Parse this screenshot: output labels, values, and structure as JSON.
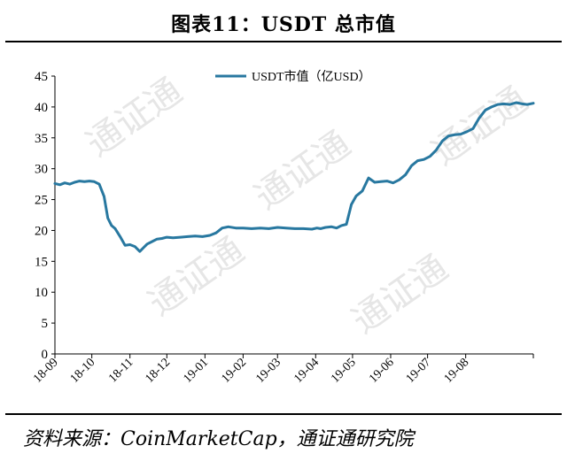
{
  "figure_title": "图表11：USDT 总市值",
  "source_text": "资料来源：CoinMarketCap，通证通研究院",
  "colors": {
    "line": "#2878a0",
    "axis": "#000000",
    "watermark": "#e6e6e6"
  },
  "watermark_text": "通证通",
  "chart_data": {
    "type": "line",
    "title": "",
    "xlabel": "",
    "ylabel": "",
    "ylim": [
      0,
      45
    ],
    "yticks": [
      0,
      5,
      10,
      15,
      20,
      25,
      30,
      35,
      40,
      45
    ],
    "xlim": [
      "2018-09-01",
      "2019-09-25"
    ],
    "xticks": [
      {
        "label": "18-09",
        "date": "2018-09-01"
      },
      {
        "label": "18-10",
        "date": "2018-10-01"
      },
      {
        "label": "18-11",
        "date": "2018-11-01"
      },
      {
        "label": "18-12",
        "date": "2018-12-01"
      },
      {
        "label": "19-01",
        "date": "2019-01-01"
      },
      {
        "label": "19-02",
        "date": "2019-02-01"
      },
      {
        "label": "19-03",
        "date": "2019-03-01"
      },
      {
        "label": "19-04",
        "date": "2019-04-01"
      },
      {
        "label": "19-05",
        "date": "2019-05-01"
      },
      {
        "label": "19-06",
        "date": "2019-06-01"
      },
      {
        "label": "19-07",
        "date": "2019-07-01"
      },
      {
        "label": "19-08",
        "date": "2019-08-01"
      }
    ],
    "grid": false,
    "legend_position": "top-center",
    "series": [
      {
        "name": "USDT市值（亿USD）",
        "x": [
          "2018-09-01",
          "2018-09-05",
          "2018-09-09",
          "2018-09-13",
          "2018-09-17",
          "2018-09-21",
          "2018-09-25",
          "2018-09-29",
          "2018-10-03",
          "2018-10-07",
          "2018-10-11",
          "2018-10-14",
          "2018-10-17",
          "2018-10-20",
          "2018-10-24",
          "2018-10-28",
          "2018-11-01",
          "2018-11-05",
          "2018-11-09",
          "2018-11-12",
          "2018-11-15",
          "2018-11-19",
          "2018-11-23",
          "2018-11-27",
          "2018-12-01",
          "2018-12-06",
          "2018-12-12",
          "2018-12-18",
          "2018-12-24",
          "2018-12-30",
          "2019-01-05",
          "2019-01-10",
          "2019-01-15",
          "2019-01-20",
          "2019-01-26",
          "2019-02-01",
          "2019-02-08",
          "2019-02-15",
          "2019-02-22",
          "2019-03-01",
          "2019-03-08",
          "2019-03-15",
          "2019-03-22",
          "2019-03-29",
          "2019-04-02",
          "2019-04-05",
          "2019-04-09",
          "2019-04-14",
          "2019-04-18",
          "2019-04-22",
          "2019-04-26",
          "2019-04-30",
          "2019-05-04",
          "2019-05-09",
          "2019-05-14",
          "2019-05-19",
          "2019-05-24",
          "2019-05-29",
          "2019-06-03",
          "2019-06-08",
          "2019-06-13",
          "2019-06-18",
          "2019-06-23",
          "2019-06-28",
          "2019-07-03",
          "2019-07-08",
          "2019-07-13",
          "2019-07-18",
          "2019-07-23",
          "2019-07-28",
          "2019-08-02",
          "2019-08-07",
          "2019-08-12",
          "2019-08-17",
          "2019-08-22",
          "2019-08-27",
          "2019-09-01",
          "2019-09-06",
          "2019-09-11",
          "2019-09-16",
          "2019-09-20",
          "2019-09-25"
        ],
        "values": [
          27.6,
          27.4,
          27.7,
          27.5,
          27.8,
          28.0,
          27.9,
          28.0,
          27.9,
          27.5,
          25.5,
          22.0,
          20.8,
          20.3,
          19.0,
          17.6,
          17.7,
          17.4,
          16.6,
          17.2,
          17.8,
          18.2,
          18.6,
          18.7,
          18.9,
          18.8,
          18.9,
          19.0,
          19.1,
          19.0,
          19.2,
          19.6,
          20.4,
          20.6,
          20.4,
          20.4,
          20.3,
          20.4,
          20.3,
          20.5,
          20.4,
          20.3,
          20.3,
          20.2,
          20.4,
          20.3,
          20.5,
          20.6,
          20.4,
          20.8,
          21.0,
          24.2,
          25.6,
          26.4,
          28.5,
          27.8,
          27.9,
          28.0,
          27.7,
          28.2,
          29.0,
          30.5,
          31.3,
          31.5,
          32.0,
          33.0,
          34.5,
          35.3,
          35.5,
          35.6,
          36.0,
          36.5,
          38.2,
          39.5,
          40.0,
          40.4,
          40.5,
          40.4,
          40.7,
          40.5,
          40.4,
          40.6
        ]
      }
    ]
  }
}
